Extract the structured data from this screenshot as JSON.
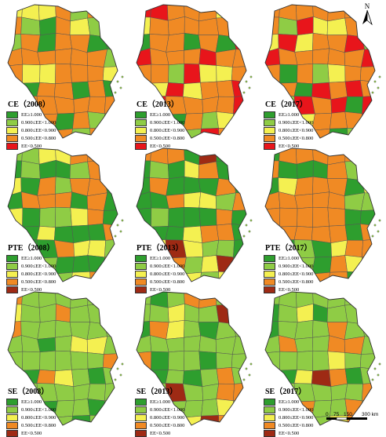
{
  "north_label": "N",
  "scale": {
    "ticks": [
      "0",
      "75",
      "150",
      "300 km"
    ]
  },
  "legend_colors": [
    "#2e9e2e",
    "#8fcc45",
    "#f4f051",
    "#f08a24",
    "#e8151b"
  ],
  "legend_colors_dark": [
    "#2e9e2e",
    "#8fcc45",
    "#f4f051",
    "#f08a24",
    "#9e2a14"
  ],
  "legend_labels": [
    "EE≥1.000",
    "0.900≤EE<1.000",
    "0.800≤EE<0.900",
    "0.500≤EE<0.800",
    "EE<0.500"
  ],
  "panels": [
    {
      "title": "CE（2008）",
      "palette": "legend_colors",
      "mix": [
        0.2,
        0.15,
        0.2,
        0.45,
        0.0
      ]
    },
    {
      "title": "CE（2013）",
      "palette": "legend_colors",
      "mix": [
        0.1,
        0.1,
        0.25,
        0.4,
        0.15
      ]
    },
    {
      "title": "CE（2017）",
      "palette": "legend_colors",
      "mix": [
        0.12,
        0.08,
        0.22,
        0.46,
        0.12
      ]
    },
    {
      "title": "PTE（2008）",
      "palette": "legend_colors_dark",
      "mix": [
        0.45,
        0.2,
        0.15,
        0.2,
        0.0
      ]
    },
    {
      "title": "PTE（2013）",
      "palette": "legend_colors_dark",
      "mix": [
        0.55,
        0.1,
        0.1,
        0.2,
        0.05
      ]
    },
    {
      "title": "PTE（2017）",
      "palette": "legend_colors_dark",
      "mix": [
        0.35,
        0.1,
        0.1,
        0.45,
        0.0
      ]
    },
    {
      "title": "SE（2008）",
      "palette": "legend_colors_dark",
      "mix": [
        0.15,
        0.6,
        0.1,
        0.13,
        0.02
      ]
    },
    {
      "title": "SE（2013）",
      "palette": "legend_colors_dark",
      "mix": [
        0.15,
        0.55,
        0.08,
        0.18,
        0.04
      ]
    },
    {
      "title": "SE（2017）",
      "palette": "legend_colors_dark",
      "mix": [
        0.12,
        0.55,
        0.1,
        0.2,
        0.03
      ]
    }
  ]
}
